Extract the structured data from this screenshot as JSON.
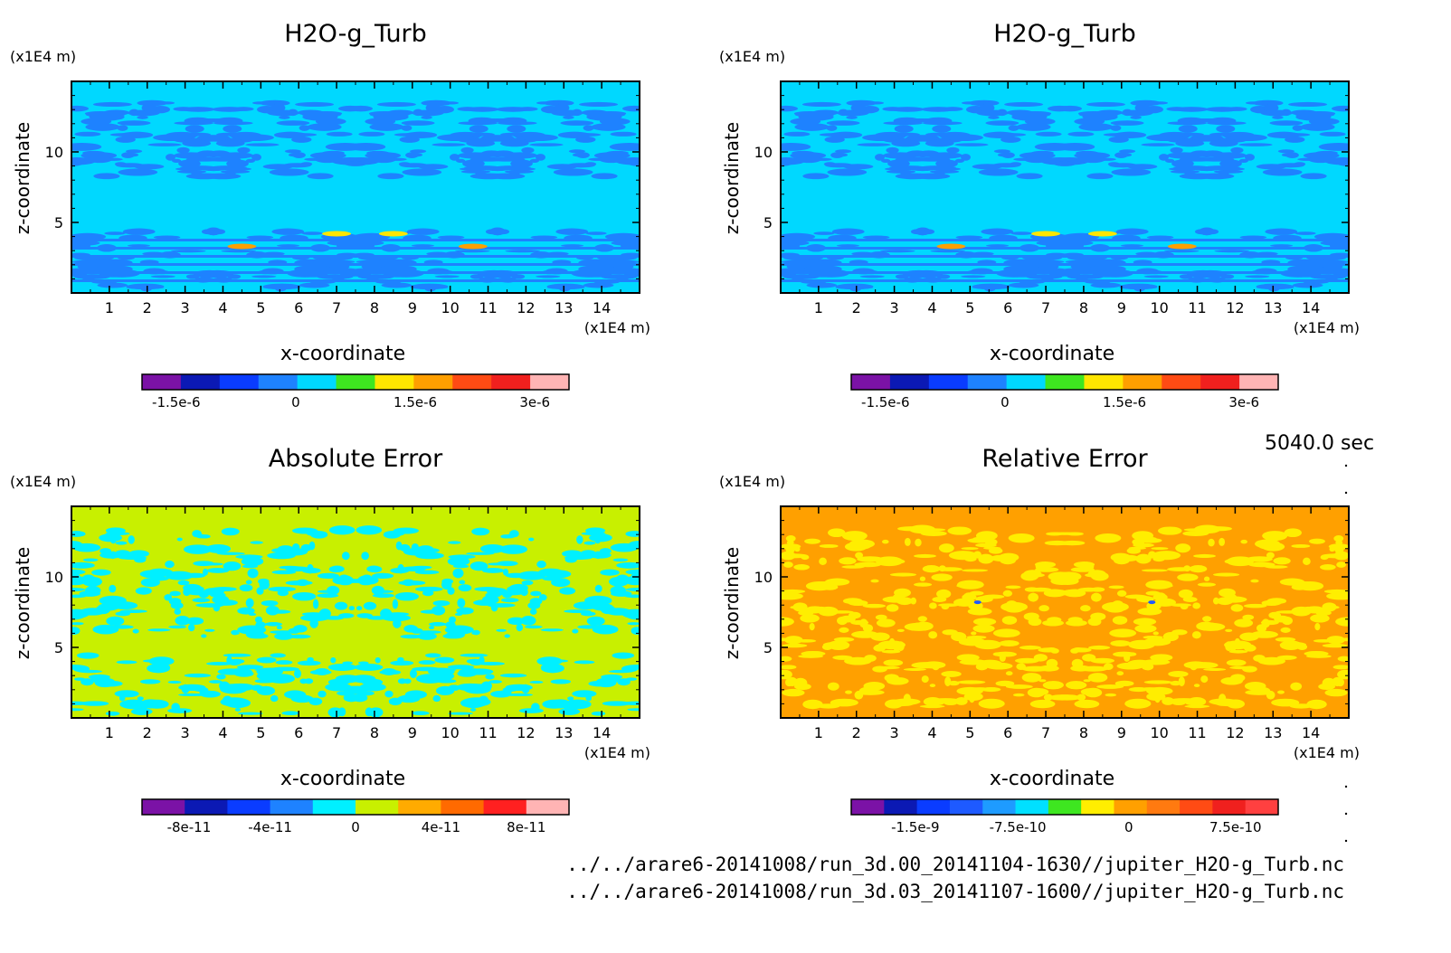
{
  "time_label": "5040.0 sec",
  "file_paths": [
    "../../arare6-20141008/run_3d.00_20141104-1630//jupiter_H2O-g_Turb.nc",
    "../../arare6-20141008/run_3d.03_20141107-1600//jupiter_H2O-g_Turb.nc"
  ],
  "chart_data": [
    {
      "type": "heatmap",
      "title": "H2O-g_Turb",
      "xlabel": "x-coordinate",
      "ylabel": "z-coordinate",
      "x_unit": "(x1E4 m)",
      "y_unit": "(x1E4 m)",
      "xlim": [
        0,
        15
      ],
      "ylim": [
        0,
        15
      ],
      "x_ticks": [
        "1",
        "2",
        "3",
        "4",
        "5",
        "6",
        "7",
        "8",
        "9",
        "10",
        "11",
        "12",
        "13",
        "14"
      ],
      "y_ticks": [
        "5",
        "10"
      ],
      "dominant_level": "0 (cyan, approx. -2e-7 to 2e-7)",
      "colorbar": {
        "colors": [
          "#7b12a6",
          "#0b19b4",
          "#0a3cff",
          "#1e82ff",
          "#00d8ff",
          "#3ee620",
          "#ffe600",
          "#ff9f00",
          "#ff4b14",
          "#f0201e",
          "#ffb4b4"
        ],
        "tick_labels": [
          "-1.5e-6",
          "0",
          "1.5e-6",
          "3e-6"
        ]
      }
    },
    {
      "type": "heatmap",
      "title": "H2O-g_Turb",
      "xlabel": "x-coordinate",
      "ylabel": "z-coordinate",
      "x_unit": "(x1E4 m)",
      "y_unit": "(x1E4 m)",
      "xlim": [
        0,
        15
      ],
      "ylim": [
        0,
        15
      ],
      "x_ticks": [
        "1",
        "2",
        "3",
        "4",
        "5",
        "6",
        "7",
        "8",
        "9",
        "10",
        "11",
        "12",
        "13",
        "14"
      ],
      "y_ticks": [
        "5",
        "10"
      ],
      "dominant_level": "0 (cyan, approx. -2e-7 to 2e-7)",
      "colorbar": {
        "colors": [
          "#7b12a6",
          "#0b19b4",
          "#0a3cff",
          "#1e82ff",
          "#00d8ff",
          "#3ee620",
          "#ffe600",
          "#ff9f00",
          "#ff4b14",
          "#f0201e",
          "#ffb4b4"
        ],
        "tick_labels": [
          "-1.5e-6",
          "0",
          "1.5e-6",
          "3e-6"
        ]
      }
    },
    {
      "type": "heatmap",
      "title": "Absolute Error",
      "xlabel": "x-coordinate",
      "ylabel": "z-coordinate",
      "x_unit": "(x1E4 m)",
      "y_unit": "(x1E4 m)",
      "xlim": [
        0,
        15
      ],
      "ylim": [
        0,
        15
      ],
      "x_ticks": [
        "1",
        "2",
        "3",
        "4",
        "5",
        "6",
        "7",
        "8",
        "9",
        "10",
        "11",
        "12",
        "13",
        "14"
      ],
      "y_ticks": [
        "5",
        "10"
      ],
      "dominant_level": "0 (yellow-green) with cyan patches just below 0",
      "colorbar": {
        "colors": [
          "#7b12a6",
          "#0b19b4",
          "#0a3cff",
          "#1e82ff",
          "#00f0ff",
          "#c8f000",
          "#ffab00",
          "#ff6a00",
          "#ff2020",
          "#ffb4b4"
        ],
        "tick_labels": [
          "-8e-11",
          "-4e-11",
          "0",
          "4e-11",
          "8e-11"
        ]
      }
    },
    {
      "type": "heatmap",
      "title": "Relative Error",
      "xlabel": "x-coordinate",
      "ylabel": "z-coordinate",
      "x_unit": "(x1E4 m)",
      "y_unit": "(x1E4 m)",
      "xlim": [
        0,
        15
      ],
      "ylim": [
        0,
        15
      ],
      "x_ticks": [
        "1",
        "2",
        "3",
        "4",
        "5",
        "6",
        "7",
        "8",
        "9",
        "10",
        "11",
        "12",
        "13",
        "14"
      ],
      "y_ticks": [
        "5",
        "10"
      ],
      "dominant_level": "0 (orange) with yellow patches just below 0",
      "colorbar": {
        "colors": [
          "#7b12a6",
          "#0b19b4",
          "#0a3cff",
          "#1e5aff",
          "#1e9bff",
          "#00e0ff",
          "#3ee620",
          "#ffee00",
          "#ffa000",
          "#ff7a10",
          "#ff4b14",
          "#f0201e",
          "#ff4040"
        ],
        "tick_labels": [
          "-1.5e-9",
          "-7.5e-10",
          "0",
          "7.5e-10"
        ]
      }
    }
  ]
}
